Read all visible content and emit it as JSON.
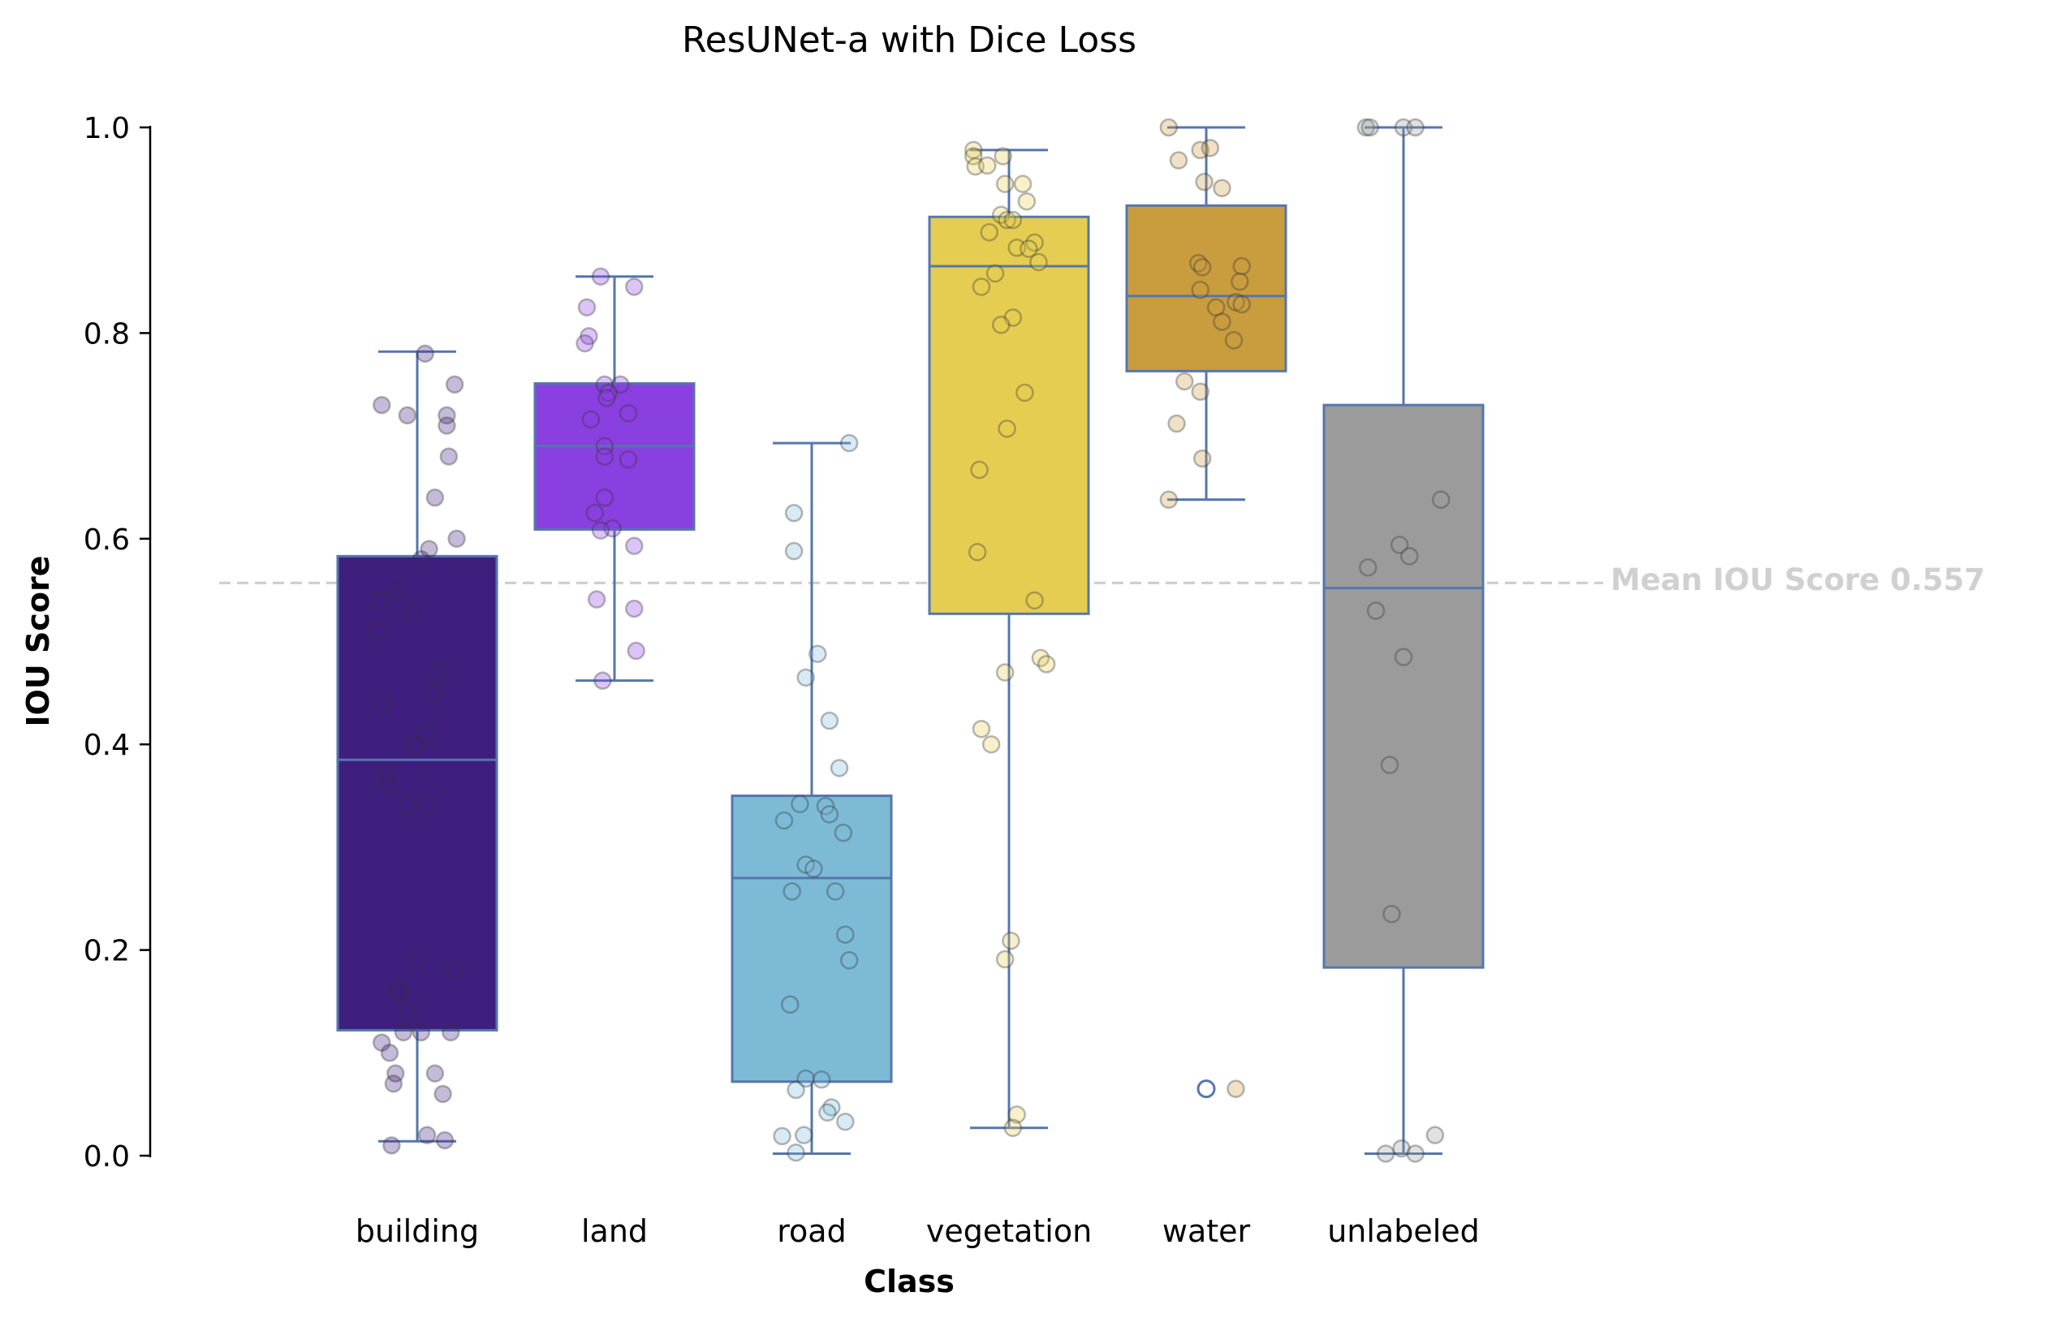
{
  "chart_data": {
    "type": "box",
    "title": "ResUNet-a with Dice Loss",
    "xlabel": "Class",
    "ylabel": "IOU Score",
    "ylim": [
      0,
      1
    ],
    "yticks": [
      "0.0",
      "0.2",
      "0.4",
      "0.6",
      "0.8",
      "1.0"
    ],
    "grid": false,
    "categories": [
      "building",
      "land",
      "road",
      "vegetation",
      "water",
      "unlabeled"
    ],
    "colors": [
      "#3e1f7e",
      "#8a3fe0",
      "#7dbad6",
      "#e5cd52",
      "#c99c3e",
      "#9b9b9b"
    ],
    "edge_color": "#5576ad",
    "boxes": [
      {
        "q1": 0.122,
        "median": 0.385,
        "q3": 0.583,
        "whisker_low": 0.014,
        "whisker_high": 0.782,
        "outliers": []
      },
      {
        "q1": 0.609,
        "median": 0.69,
        "q3": 0.751,
        "whisker_low": 0.462,
        "whisker_high": 0.855,
        "outliers": []
      },
      {
        "q1": 0.072,
        "median": 0.27,
        "q3": 0.35,
        "whisker_low": 0.002,
        "whisker_high": 0.693,
        "outliers": []
      },
      {
        "q1": 0.527,
        "median": 0.865,
        "q3": 0.913,
        "whisker_low": 0.027,
        "whisker_high": 0.978,
        "outliers": []
      },
      {
        "q1": 0.763,
        "median": 0.836,
        "q3": 0.924,
        "whisker_low": 0.638,
        "whisker_high": 1.0,
        "outliers": [
          0.065
        ]
      },
      {
        "q1": 0.183,
        "median": 0.552,
        "q3": 0.73,
        "whisker_low": 0.002,
        "whisker_high": 1.0,
        "outliers": []
      }
    ],
    "points": [
      [
        [
          -0.13,
          0.01
        ],
        [
          0.04,
          0.78
        ],
        [
          -0.18,
          0.73
        ],
        [
          -0.05,
          0.72
        ],
        [
          0.19,
          0.75
        ],
        [
          0.15,
          0.72
        ],
        [
          0.15,
          0.71
        ],
        [
          0.16,
          0.68
        ],
        [
          0.09,
          0.64
        ],
        [
          0.2,
          0.6
        ],
        [
          0.06,
          0.59
        ],
        [
          0.02,
          0.58
        ],
        [
          -0.1,
          0.55
        ],
        [
          -0.19,
          0.54
        ],
        [
          -0.02,
          0.53
        ],
        [
          -0.2,
          0.51
        ],
        [
          0.11,
          0.47
        ],
        [
          0.08,
          0.45
        ],
        [
          -0.18,
          0.44
        ],
        [
          0.04,
          0.41
        ],
        [
          -0.01,
          0.4
        ],
        [
          -0.16,
          0.37
        ],
        [
          -0.15,
          0.36
        ],
        [
          -0.05,
          0.34
        ],
        [
          0.05,
          0.34
        ],
        [
          -0.01,
          0.19
        ],
        [
          0.19,
          0.18
        ],
        [
          -0.09,
          0.16
        ],
        [
          -0.1,
          0.16
        ],
        [
          -0.05,
          0.14
        ],
        [
          0.02,
          0.12
        ],
        [
          -0.07,
          0.12
        ],
        [
          0.17,
          0.12
        ],
        [
          -0.18,
          0.11
        ],
        [
          -0.14,
          0.1
        ],
        [
          -0.11,
          0.08
        ],
        [
          0.09,
          0.08
        ],
        [
          -0.12,
          0.07
        ],
        [
          0.13,
          0.06
        ],
        [
          0.05,
          0.02
        ],
        [
          0.14,
          0.015
        ]
      ],
      [
        [
          -0.07,
          0.855
        ],
        [
          0.1,
          0.845
        ],
        [
          -0.14,
          0.825
        ],
        [
          -0.13,
          0.797
        ],
        [
          -0.15,
          0.79
        ],
        [
          -0.05,
          0.75
        ],
        [
          0.03,
          0.75
        ],
        [
          -0.03,
          0.742
        ],
        [
          -0.04,
          0.737
        ],
        [
          0.07,
          0.722
        ],
        [
          -0.12,
          0.716
        ],
        [
          -0.05,
          0.69
        ],
        [
          -0.05,
          0.68
        ],
        [
          0.07,
          0.677
        ],
        [
          -0.05,
          0.64
        ],
        [
          -0.1,
          0.625
        ],
        [
          -0.01,
          0.61
        ],
        [
          -0.07,
          0.608
        ],
        [
          0.1,
          0.593
        ],
        [
          -0.09,
          0.541
        ],
        [
          0.1,
          0.532
        ],
        [
          0.11,
          0.491
        ],
        [
          -0.06,
          0.462
        ]
      ],
      [
        [
          0.19,
          0.693
        ],
        [
          -0.09,
          0.625
        ],
        [
          -0.09,
          0.588
        ],
        [
          0.03,
          0.488
        ],
        [
          -0.03,
          0.465
        ],
        [
          0.09,
          0.423
        ],
        [
          0.14,
          0.377
        ],
        [
          -0.06,
          0.342
        ],
        [
          0.07,
          0.34
        ],
        [
          0.09,
          0.332
        ],
        [
          -0.14,
          0.326
        ],
        [
          0.16,
          0.314
        ],
        [
          -0.03,
          0.283
        ],
        [
          0.01,
          0.279
        ],
        [
          -0.1,
          0.257
        ],
        [
          0.12,
          0.257
        ],
        [
          0.17,
          0.215
        ],
        [
          0.19,
          0.19
        ],
        [
          -0.11,
          0.147
        ],
        [
          -0.03,
          0.075
        ],
        [
          0.05,
          0.074
        ],
        [
          -0.08,
          0.064
        ],
        [
          0.1,
          0.047
        ],
        [
          0.08,
          0.042
        ],
        [
          0.17,
          0.033
        ],
        [
          -0.15,
          0.019
        ],
        [
          -0.04,
          0.02
        ],
        [
          -0.08,
          0.003
        ]
      ],
      [
        [
          -0.18,
          0.978
        ],
        [
          -0.18,
          0.972
        ],
        [
          -0.03,
          0.972
        ],
        [
          -0.17,
          0.962
        ],
        [
          -0.11,
          0.963
        ],
        [
          -0.02,
          0.945
        ],
        [
          0.07,
          0.945
        ],
        [
          0.09,
          0.928
        ],
        [
          -0.04,
          0.915
        ],
        [
          -0.01,
          0.91
        ],
        [
          0.02,
          0.91
        ],
        [
          -0.1,
          0.898
        ],
        [
          0.13,
          0.888
        ],
        [
          0.04,
          0.883
        ],
        [
          0.1,
          0.882
        ],
        [
          0.15,
          0.869
        ],
        [
          -0.07,
          0.858
        ],
        [
          -0.14,
          0.845
        ],
        [
          0.02,
          0.815
        ],
        [
          -0.04,
          0.808
        ],
        [
          0.08,
          0.742
        ],
        [
          -0.01,
          0.707
        ],
        [
          -0.15,
          0.667
        ],
        [
          -0.16,
          0.587
        ],
        [
          0.13,
          0.54
        ],
        [
          0.16,
          0.484
        ],
        [
          0.19,
          0.478
        ],
        [
          -0.02,
          0.47
        ],
        [
          -0.14,
          0.415
        ],
        [
          -0.09,
          0.4
        ],
        [
          0.01,
          0.209
        ],
        [
          -0.02,
          0.191
        ],
        [
          0.04,
          0.04
        ],
        [
          0.02,
          0.027
        ]
      ],
      [
        [
          -0.19,
          1.0
        ],
        [
          -0.03,
          0.978
        ],
        [
          0.02,
          0.98
        ],
        [
          -0.14,
          0.968
        ],
        [
          -0.01,
          0.947
        ],
        [
          0.08,
          0.941
        ],
        [
          -0.04,
          0.868
        ],
        [
          -0.02,
          0.864
        ],
        [
          0.18,
          0.865
        ],
        [
          0.17,
          0.85
        ],
        [
          -0.03,
          0.842
        ],
        [
          0.15,
          0.83
        ],
        [
          0.18,
          0.828
        ],
        [
          0.05,
          0.825
        ],
        [
          0.08,
          0.811
        ],
        [
          0.14,
          0.793
        ],
        [
          -0.11,
          0.753
        ],
        [
          -0.03,
          0.743
        ],
        [
          -0.15,
          0.712
        ],
        [
          -0.02,
          0.678
        ],
        [
          -0.19,
          0.638
        ],
        [
          0.15,
          0.065
        ]
      ],
      [
        [
          -0.19,
          1.0
        ],
        [
          -0.17,
          1.0
        ],
        [
          0.0,
          1.0
        ],
        [
          0.06,
          1.0
        ],
        [
          0.19,
          0.638
        ],
        [
          -0.02,
          0.594
        ],
        [
          0.03,
          0.583
        ],
        [
          -0.18,
          0.572
        ],
        [
          -0.14,
          0.53
        ],
        [
          0.0,
          0.485
        ],
        [
          -0.07,
          0.38
        ],
        [
          -0.06,
          0.235
        ],
        [
          0.16,
          0.02
        ],
        [
          -0.01,
          0.007
        ],
        [
          0.06,
          0.002
        ],
        [
          -0.09,
          0.002
        ]
      ]
    ],
    "mean_line": {
      "value": 0.557,
      "label": "Mean IOU Score 0.557"
    }
  }
}
